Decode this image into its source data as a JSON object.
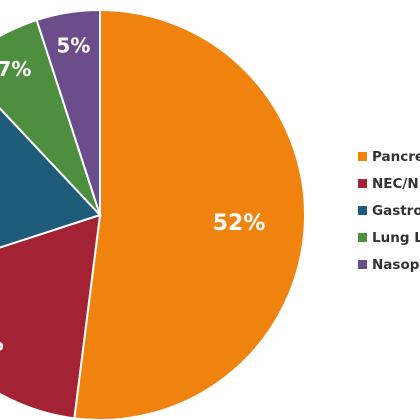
{
  "chart_data": {
    "type": "pie",
    "series": [
      {
        "name": "Pancre",
        "value": 52,
        "label": "52%",
        "color": "#F0830E"
      },
      {
        "name": "NEC/N",
        "value": 18,
        "label": "%",
        "color": "#A32234"
      },
      {
        "name": "Gastro",
        "value": 18,
        "label": "",
        "color": "#1F5C7A"
      },
      {
        "name": "Lung La",
        "value": 7,
        "label": "7%",
        "color": "#4D8F3E"
      },
      {
        "name": "Nasopl",
        "value": 5,
        "label": "5%",
        "color": "#6B4D8C"
      }
    ],
    "legend": "right"
  }
}
